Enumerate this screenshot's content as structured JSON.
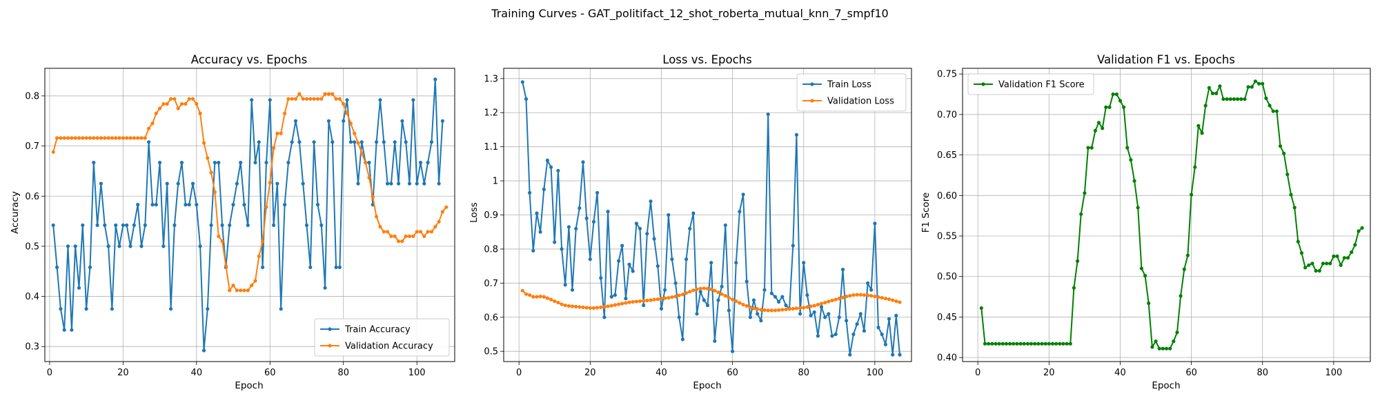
{
  "figure_title": "Training Curves - GAT_politifact_12_shot_roberta_mutual_knn_7_smpf10",
  "colors": {
    "train": "#1f77b4",
    "validation": "#ff7f0e",
    "f1": "#008000",
    "grid": "#b0b0b0"
  },
  "chart_data": [
    {
      "type": "line",
      "title": "Accuracy vs. Epochs",
      "xlabel": "Epoch",
      "ylabel": "Accuracy",
      "xlim": [
        -1.3,
        110.3
      ],
      "ylim": [
        0.27,
        0.855
      ],
      "xticks": [
        0,
        20,
        40,
        60,
        80,
        100
      ],
      "yticks": [
        0.3,
        0.4,
        0.5,
        0.6,
        0.7,
        0.8
      ],
      "grid": true,
      "legend_position": "lower right",
      "x_start": 1,
      "series": [
        {
          "name": "Train Accuracy",
          "color": "#1f77b4",
          "values": [
            0.542,
            0.458,
            0.375,
            0.333,
            0.5,
            0.333,
            0.5,
            0.417,
            0.542,
            0.375,
            0.458,
            0.667,
            0.542,
            0.625,
            0.542,
            0.5,
            0.375,
            0.542,
            0.5,
            0.542,
            0.542,
            0.5,
            0.542,
            0.583,
            0.5,
            0.542,
            0.708,
            0.583,
            0.583,
            0.667,
            0.5,
            0.625,
            0.375,
            0.542,
            0.625,
            0.667,
            0.583,
            0.583,
            0.625,
            0.583,
            0.5,
            0.292,
            0.375,
            0.542,
            0.667,
            0.667,
            0.542,
            0.458,
            0.542,
            0.583,
            0.625,
            0.667,
            0.583,
            0.542,
            0.792,
            0.667,
            0.708,
            0.458,
            0.667,
            0.792,
            0.542,
            0.625,
            0.375,
            0.583,
            0.667,
            0.708,
            0.75,
            0.708,
            0.625,
            0.542,
            0.458,
            0.708,
            0.583,
            0.542,
            0.417,
            0.75,
            0.708,
            0.458,
            0.458,
            0.75,
            0.792,
            0.708,
            0.708,
            0.625,
            0.708,
            0.667,
            0.667,
            0.583,
            0.708,
            0.792,
            0.708,
            0.625,
            0.625,
            0.708,
            0.625,
            0.75,
            0.708,
            0.625,
            0.792,
            0.625,
            0.667,
            0.625,
            0.667,
            0.708,
            0.833,
            0.625,
            0.75
          ]
        },
        {
          "name": "Validation Accuracy",
          "color": "#ff7f0e",
          "values": [
            0.688,
            0.716,
            0.716,
            0.716,
            0.716,
            0.716,
            0.716,
            0.716,
            0.716,
            0.716,
            0.716,
            0.716,
            0.716,
            0.716,
            0.716,
            0.716,
            0.716,
            0.716,
            0.716,
            0.716,
            0.716,
            0.716,
            0.716,
            0.716,
            0.716,
            0.716,
            0.735,
            0.745,
            0.765,
            0.775,
            0.784,
            0.784,
            0.794,
            0.794,
            0.775,
            0.784,
            0.784,
            0.794,
            0.794,
            0.784,
            0.765,
            0.706,
            0.676,
            0.647,
            0.608,
            0.52,
            0.51,
            0.461,
            0.412,
            0.422,
            0.412,
            0.412,
            0.412,
            0.412,
            0.422,
            0.431,
            0.48,
            0.51,
            0.578,
            0.627,
            0.696,
            0.725,
            0.725,
            0.765,
            0.794,
            0.794,
            0.794,
            0.804,
            0.794,
            0.794,
            0.794,
            0.794,
            0.794,
            0.794,
            0.804,
            0.804,
            0.804,
            0.794,
            0.794,
            0.784,
            0.765,
            0.745,
            0.725,
            0.706,
            0.686,
            0.667,
            0.637,
            0.598,
            0.559,
            0.539,
            0.529,
            0.529,
            0.52,
            0.52,
            0.51,
            0.51,
            0.52,
            0.52,
            0.52,
            0.529,
            0.529,
            0.52,
            0.529,
            0.529,
            0.539,
            0.549,
            0.569,
            0.578
          ]
        }
      ]
    },
    {
      "type": "line",
      "title": "Loss vs. Epochs",
      "xlabel": "Epoch",
      "ylabel": "Loss",
      "xlim": [
        -4.3,
        110.3
      ],
      "ylim": [
        0.47,
        1.33
      ],
      "xticks": [
        0,
        20,
        40,
        60,
        80,
        100
      ],
      "yticks": [
        0.5,
        0.6,
        0.7,
        0.8,
        0.9,
        1.0,
        1.1,
        1.2,
        1.3
      ],
      "grid": true,
      "legend_position": "upper right",
      "x_start": 1,
      "series": [
        {
          "name": "Train Loss",
          "color": "#1f77b4",
          "values": [
            1.29,
            1.24,
            0.965,
            0.795,
            0.905,
            0.85,
            0.975,
            1.06,
            1.04,
            0.82,
            1.03,
            0.8,
            0.695,
            0.865,
            0.68,
            0.86,
            0.92,
            1.055,
            0.89,
            0.77,
            0.88,
            0.965,
            0.715,
            0.6,
            0.91,
            0.66,
            0.665,
            0.765,
            0.81,
            0.655,
            0.755,
            0.735,
            0.875,
            0.86,
            0.635,
            0.845,
            0.94,
            0.83,
            0.75,
            0.625,
            0.68,
            0.9,
            0.77,
            0.7,
            0.6,
            0.535,
            0.77,
            0.86,
            0.905,
            0.61,
            0.675,
            0.65,
            0.635,
            0.76,
            0.53,
            0.65,
            0.69,
            0.87,
            0.62,
            0.5,
            0.76,
            0.91,
            0.96,
            0.705,
            0.6,
            0.65,
            0.61,
            0.59,
            0.68,
            1.195,
            0.67,
            0.66,
            0.645,
            0.66,
            0.635,
            0.625,
            0.81,
            1.135,
            0.61,
            0.76,
            0.665,
            0.605,
            0.615,
            0.545,
            0.63,
            0.6,
            0.61,
            0.545,
            0.55,
            0.6,
            0.74,
            0.59,
            0.49,
            0.55,
            0.58,
            0.61,
            0.56,
            0.7,
            0.68,
            0.875,
            0.57,
            0.55,
            0.52,
            0.595,
            0.49,
            0.605,
            0.49
          ]
        },
        {
          "name": "Validation Loss",
          "color": "#ff7f0e",
          "values": [
            0.678,
            0.668,
            0.665,
            0.66,
            0.66,
            0.661,
            0.66,
            0.656,
            0.652,
            0.647,
            0.643,
            0.638,
            0.635,
            0.633,
            0.632,
            0.631,
            0.63,
            0.629,
            0.628,
            0.627,
            0.627,
            0.628,
            0.629,
            0.63,
            0.632,
            0.634,
            0.636,
            0.638,
            0.64,
            0.642,
            0.644,
            0.645,
            0.646,
            0.647,
            0.648,
            0.649,
            0.65,
            0.652,
            0.653,
            0.655,
            0.656,
            0.657,
            0.659,
            0.661,
            0.664,
            0.667,
            0.671,
            0.675,
            0.679,
            0.682,
            0.684,
            0.685,
            0.684,
            0.682,
            0.678,
            0.673,
            0.668,
            0.663,
            0.657,
            0.652,
            0.647,
            0.642,
            0.637,
            0.633,
            0.629,
            0.626,
            0.624,
            0.622,
            0.621,
            0.62,
            0.62,
            0.62,
            0.621,
            0.622,
            0.623,
            0.624,
            0.625,
            0.626,
            0.627,
            0.628,
            0.63,
            0.632,
            0.634,
            0.637,
            0.64,
            0.643,
            0.646,
            0.649,
            0.652,
            0.655,
            0.658,
            0.661,
            0.663,
            0.665,
            0.666,
            0.666,
            0.665,
            0.664,
            0.663,
            0.661,
            0.659,
            0.657,
            0.655,
            0.653,
            0.65,
            0.647,
            0.644
          ]
        }
      ]
    },
    {
      "type": "line",
      "title": "Validation F1 vs. Epochs",
      "xlabel": "Epoch",
      "ylabel": "F1 Score",
      "xlim": [
        -4.3,
        110.3
      ],
      "ylim": [
        0.395,
        0.757
      ],
      "xticks": [
        0,
        20,
        40,
        60,
        80,
        100
      ],
      "yticks": [
        0.4,
        0.45,
        0.5,
        0.55,
        0.6,
        0.65,
        0.7,
        0.75
      ],
      "tick_format": "2dp",
      "grid": true,
      "legend_position": "upper left",
      "x_start": 1,
      "series": [
        {
          "name": "Validation F1 Score",
          "color": "#008000",
          "values": [
            0.461,
            0.417,
            0.417,
            0.417,
            0.417,
            0.417,
            0.417,
            0.417,
            0.417,
            0.417,
            0.417,
            0.417,
            0.417,
            0.417,
            0.417,
            0.417,
            0.417,
            0.417,
            0.417,
            0.417,
            0.417,
            0.417,
            0.417,
            0.417,
            0.417,
            0.417,
            0.486,
            0.519,
            0.577,
            0.603,
            0.659,
            0.659,
            0.68,
            0.69,
            0.683,
            0.709,
            0.709,
            0.725,
            0.725,
            0.717,
            0.709,
            0.659,
            0.644,
            0.618,
            0.585,
            0.51,
            0.501,
            0.467,
            0.413,
            0.42,
            0.411,
            0.411,
            0.411,
            0.411,
            0.42,
            0.431,
            0.476,
            0.509,
            0.526,
            0.601,
            0.635,
            0.686,
            0.677,
            0.711,
            0.733,
            0.726,
            0.726,
            0.735,
            0.719,
            0.719,
            0.719,
            0.719,
            0.719,
            0.719,
            0.719,
            0.734,
            0.734,
            0.741,
            0.738,
            0.738,
            0.72,
            0.711,
            0.704,
            0.704,
            0.661,
            0.652,
            0.626,
            0.601,
            0.585,
            0.543,
            0.529,
            0.511,
            0.514,
            0.516,
            0.507,
            0.507,
            0.516,
            0.516,
            0.516,
            0.525,
            0.525,
            0.514,
            0.523,
            0.523,
            0.53,
            0.539,
            0.556,
            0.56
          ]
        }
      ]
    }
  ]
}
